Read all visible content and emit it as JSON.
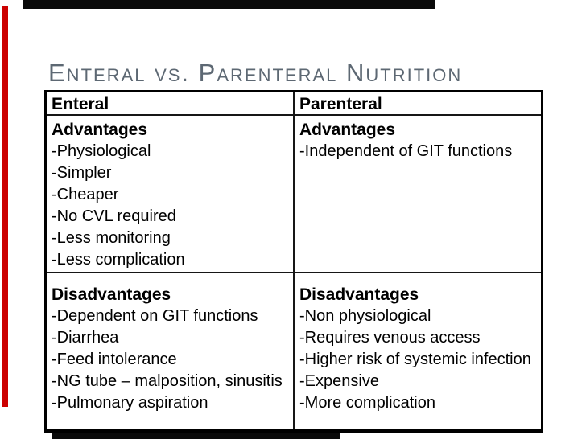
{
  "title": "Enteral vs. Parenteral Nutrition",
  "colors": {
    "accent_red": "#cc0000",
    "accent_black": "#0a0a0a",
    "title_gray": "#5d6873",
    "table_border": "#000000",
    "text": "#000000",
    "background": "#ffffff"
  },
  "table": {
    "columns": [
      {
        "header": "Enteral",
        "sections": [
          {
            "label": "Advantages",
            "items": [
              "-Physiological",
              "-Simpler",
              "-Cheaper",
              "-No CVL required",
              "-Less monitoring",
              "-Less complication"
            ]
          },
          {
            "label": "Disadvantages",
            "items": [
              "-Dependent on GIT functions",
              "-Diarrhea",
              "-Feed intolerance",
              "-NG tube – malposition, sinusitis",
              "-Pulmonary aspiration"
            ]
          }
        ]
      },
      {
        "header": "Parenteral",
        "sections": [
          {
            "label": "Advantages",
            "items": [
              "-Independent of GIT functions"
            ]
          },
          {
            "label": "Disadvantages",
            "items": [
              "-Non physiological",
              "-Requires venous access",
              "-Higher risk of systemic infection",
              "-Expensive",
              "-More complication"
            ]
          }
        ]
      }
    ]
  }
}
